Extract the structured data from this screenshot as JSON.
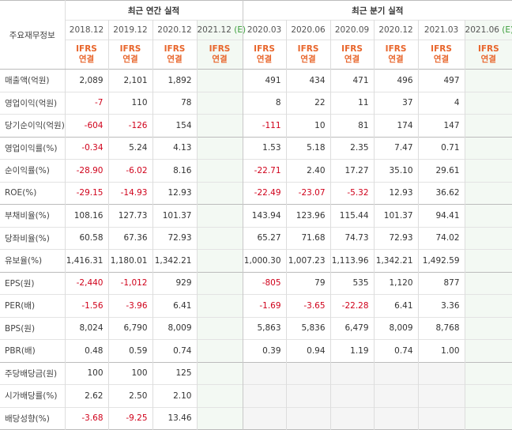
{
  "header": {
    "row_label_title": "주요재무정보",
    "annual_title": "최근 연간 실적",
    "quarter_title": "최근 분기 실적",
    "annual_periods": [
      "2018.12",
      "2019.12",
      "2020.12",
      "2021.12"
    ],
    "annual_estimate_flag": [
      "",
      "",
      "",
      "(E)"
    ],
    "quarter_periods": [
      "2020.03",
      "2020.06",
      "2020.09",
      "2020.12",
      "2021.03",
      "2021.06"
    ],
    "quarter_estimate_flag": [
      "",
      "",
      "",
      "",
      "",
      "(E)"
    ],
    "basis_line1": "IFRS",
    "basis_line2": "연결"
  },
  "rows": [
    {
      "label": "매출액(억원)",
      "values": [
        "2,089",
        "2,101",
        "1,892",
        "",
        "491",
        "434",
        "471",
        "496",
        "497",
        ""
      ]
    },
    {
      "label": "영업이익(억원)",
      "values": [
        "-7",
        "110",
        "78",
        "",
        "8",
        "22",
        "11",
        "37",
        "4",
        ""
      ]
    },
    {
      "label": "당기순이익(억원)",
      "values": [
        "-604",
        "-126",
        "154",
        "",
        "-111",
        "10",
        "81",
        "174",
        "147",
        ""
      ]
    },
    {
      "label": "영업이익률(%)",
      "values": [
        "-0.34",
        "5.24",
        "4.13",
        "",
        "1.53",
        "5.18",
        "2.35",
        "7.47",
        "0.71",
        ""
      ]
    },
    {
      "label": "순이익률(%)",
      "values": [
        "-28.90",
        "-6.02",
        "8.16",
        "",
        "-22.71",
        "2.40",
        "17.27",
        "35.10",
        "29.61",
        ""
      ]
    },
    {
      "label": "ROE(%)",
      "values": [
        "-29.15",
        "-14.93",
        "12.93",
        "",
        "-22.49",
        "-23.07",
        "-5.32",
        "12.93",
        "36.62",
        ""
      ]
    },
    {
      "label": "부채비율(%)",
      "values": [
        "108.16",
        "127.73",
        "101.37",
        "",
        "143.94",
        "123.96",
        "115.44",
        "101.37",
        "94.41",
        ""
      ]
    },
    {
      "label": "당좌비율(%)",
      "values": [
        "60.58",
        "67.36",
        "72.93",
        "",
        "65.27",
        "71.68",
        "74.73",
        "72.93",
        "74.02",
        ""
      ]
    },
    {
      "label": "유보율(%)",
      "values": [
        "1,416.31",
        "1,180.01",
        "1,342.21",
        "",
        "1,000.30",
        "1,007.23",
        "1,113.96",
        "1,342.21",
        "1,492.59",
        ""
      ]
    },
    {
      "label": "EPS(원)",
      "values": [
        "-2,440",
        "-1,012",
        "929",
        "",
        "-805",
        "79",
        "535",
        "1,120",
        "877",
        ""
      ]
    },
    {
      "label": "PER(배)",
      "values": [
        "-1.56",
        "-3.96",
        "6.41",
        "",
        "-1.69",
        "-3.65",
        "-22.28",
        "6.41",
        "3.36",
        ""
      ]
    },
    {
      "label": "BPS(원)",
      "values": [
        "8,024",
        "6,790",
        "8,009",
        "",
        "5,863",
        "5,836",
        "6,479",
        "8,009",
        "8,768",
        ""
      ]
    },
    {
      "label": "PBR(배)",
      "values": [
        "0.48",
        "0.59",
        "0.74",
        "",
        "0.39",
        "0.94",
        "1.19",
        "0.74",
        "1.00",
        ""
      ]
    },
    {
      "label": "주당배당금(원)",
      "values": [
        "100",
        "100",
        "125",
        "",
        "",
        "",
        "",
        "",
        "",
        ""
      ]
    },
    {
      "label": "시가배당률(%)",
      "values": [
        "2.62",
        "2.50",
        "2.10",
        "",
        "",
        "",
        "",
        "",
        "",
        ""
      ]
    },
    {
      "label": "배당성향(%)",
      "values": [
        "-3.68",
        "-9.25",
        "13.46",
        "",
        "",
        "",
        "",
        "",
        "",
        ""
      ]
    }
  ],
  "colors": {
    "negative": "#d0021b",
    "basis_orange": "#e8652b",
    "estimate_green": "#3a9d3a",
    "forecast_bg": "#f3f9f3",
    "empty_bg": "#f5f5f5"
  }
}
